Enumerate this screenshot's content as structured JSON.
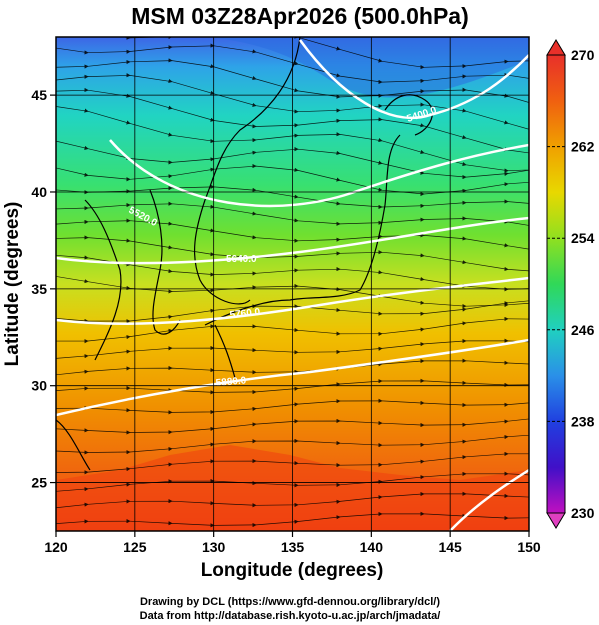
{
  "title": "MSM 03Z28Apr2026 (500.0hPa)",
  "xlabel": "Longitude (degrees)",
  "ylabel": "Latitude  (degrees)",
  "credits": [
    "Drawing by DCL (https://www.gfd-dennou.org/library/dcl/)",
    "Data from http://database.rish.kyoto-u.ac.jp/arch/jmadata/"
  ],
  "chart_data": {
    "type": "heatmap",
    "xlim": [
      120,
      150
    ],
    "ylim": [
      22.5,
      48
    ],
    "xticks": [
      120,
      125,
      130,
      135,
      140,
      145,
      150
    ],
    "yticks": [
      25,
      30,
      35,
      40,
      45
    ],
    "colorbar": {
      "ticks": [
        230,
        238,
        246,
        254,
        262,
        270
      ],
      "range": [
        230,
        270
      ]
    },
    "contour_labels": [
      "5400.0",
      "5520.0",
      "5640.0",
      "5760.0",
      "5880.0"
    ]
  }
}
